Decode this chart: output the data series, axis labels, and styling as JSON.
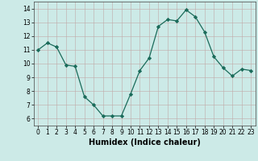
{
  "x": [
    0,
    1,
    2,
    3,
    4,
    5,
    6,
    7,
    8,
    9,
    10,
    11,
    12,
    13,
    14,
    15,
    16,
    17,
    18,
    19,
    20,
    21,
    22,
    23
  ],
  "y": [
    11.0,
    11.5,
    11.2,
    9.9,
    9.8,
    7.6,
    7.0,
    6.2,
    6.2,
    6.2,
    7.8,
    9.5,
    10.4,
    12.7,
    13.2,
    13.1,
    13.9,
    13.4,
    12.3,
    10.5,
    9.7,
    9.1,
    9.6,
    9.5
  ],
  "line_color": "#1a6b5a",
  "marker": "D",
  "marker_size": 2.2,
  "bg_color": "#cceae7",
  "grid_color_v": "#c0a8a8",
  "grid_color_h": "#c0a8a8",
  "xlabel": "Humidex (Indice chaleur)",
  "xlim": [
    -0.5,
    23.5
  ],
  "ylim": [
    5.5,
    14.5
  ],
  "yticks": [
    6,
    7,
    8,
    9,
    10,
    11,
    12,
    13,
    14
  ],
  "xticks": [
    0,
    1,
    2,
    3,
    4,
    5,
    6,
    7,
    8,
    9,
    10,
    11,
    12,
    13,
    14,
    15,
    16,
    17,
    18,
    19,
    20,
    21,
    22,
    23
  ],
  "tick_fontsize": 5.5,
  "xlabel_fontsize": 7
}
